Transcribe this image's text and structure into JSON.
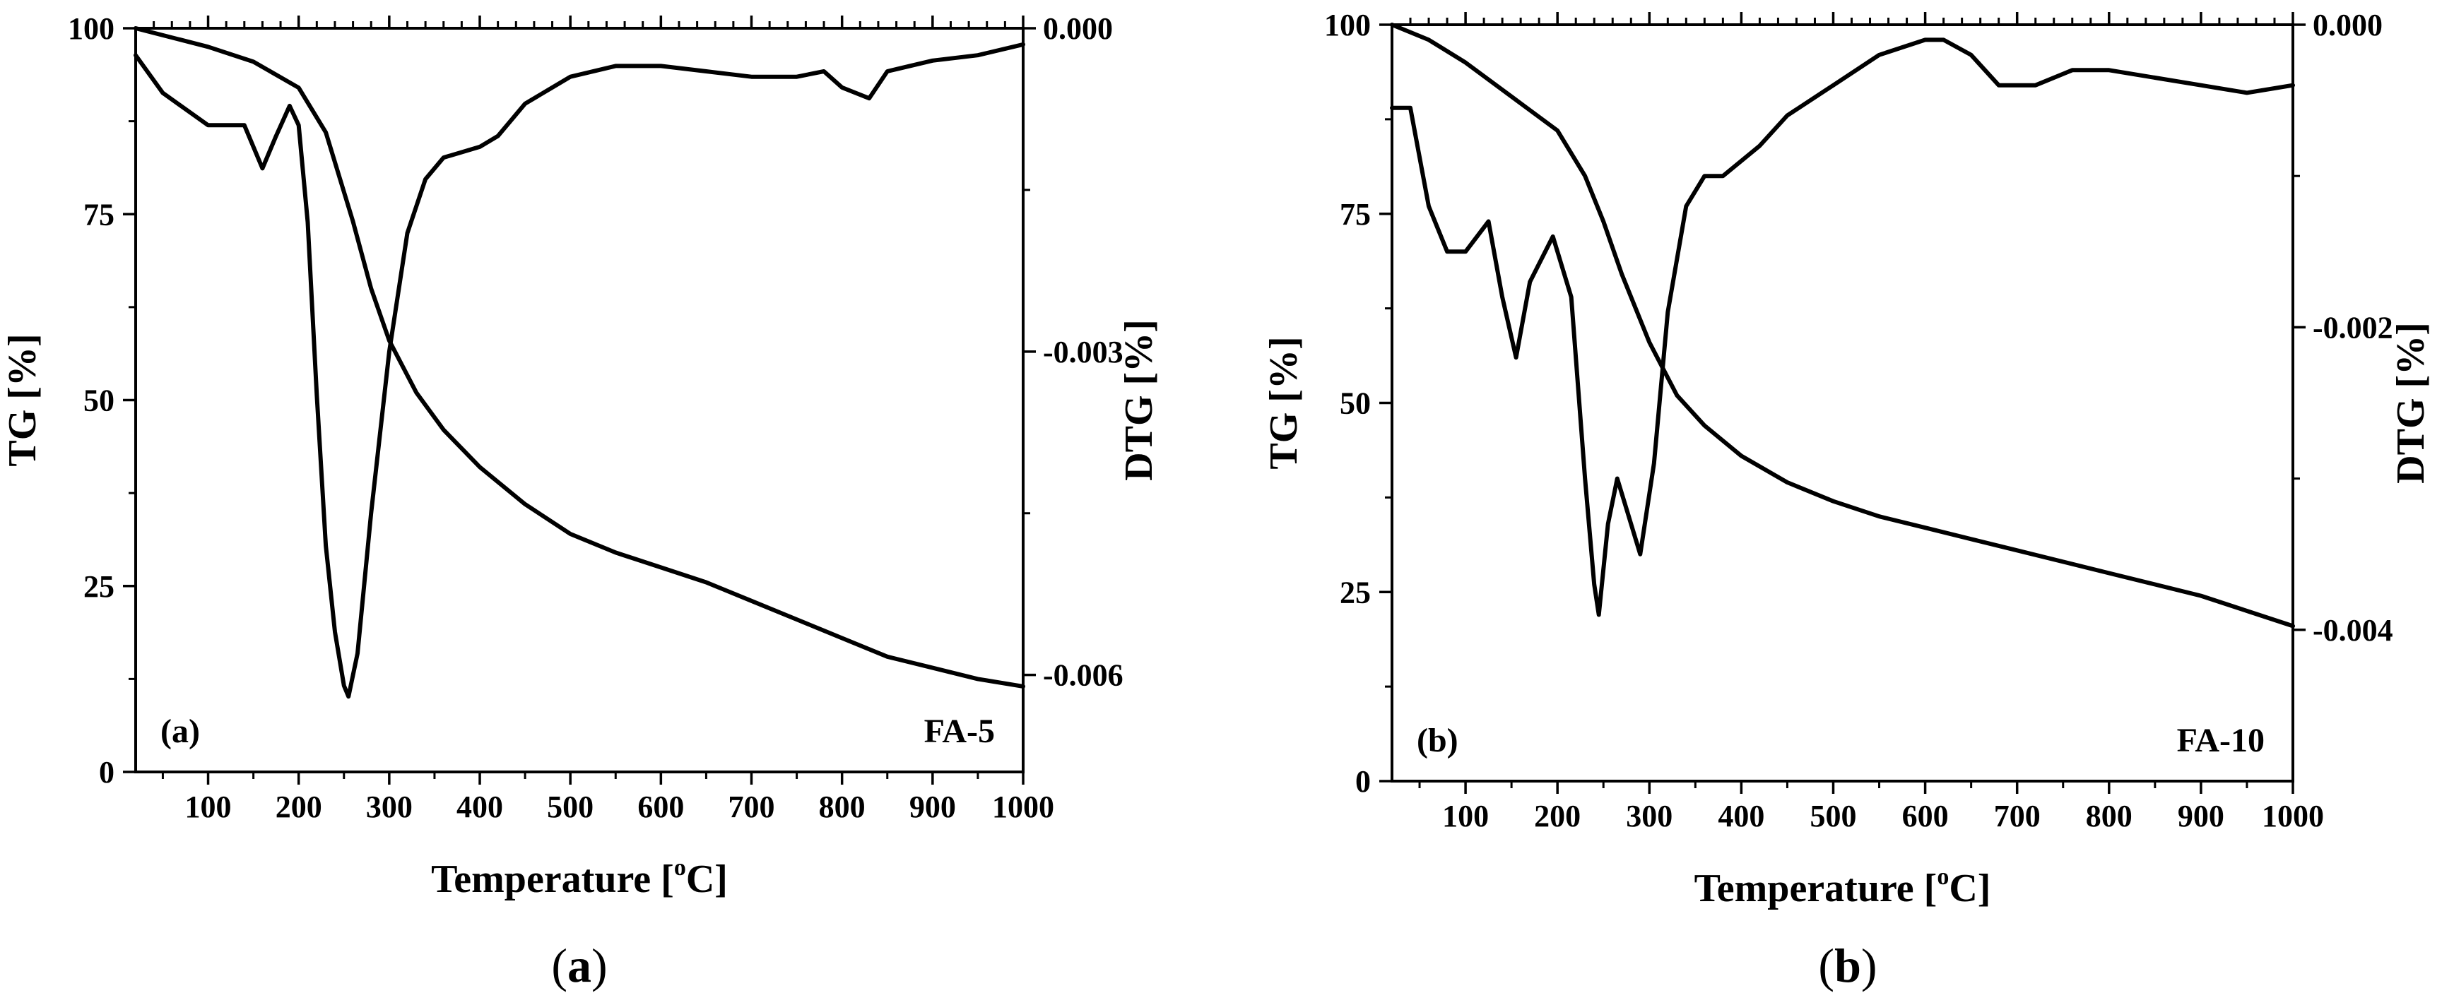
{
  "chart_data": [
    {
      "type": "line",
      "panel_tag": "(a)",
      "sample_label": "FA-5",
      "caption_letter": "a",
      "xlabel": "Temperature [",
      "xlabel_sup": "o",
      "xlabel_suffix": "C]",
      "ylabel_left": "TG [%]",
      "ylabel_right": "DTG [%]",
      "xlim": [
        20,
        1000
      ],
      "ylim_left": [
        0,
        100
      ],
      "ylim_right": [
        -0.0069,
        0.0
      ],
      "x_ticks": [
        100,
        200,
        300,
        400,
        500,
        600,
        700,
        800,
        900,
        1000
      ],
      "x_tick_labels": [
        "100",
        "200",
        "300",
        "400",
        "500",
        "600",
        "700",
        "800",
        "900",
        "1000"
      ],
      "left_ticks": [
        0,
        25,
        50,
        75,
        100
      ],
      "left_tick_labels": [
        "0",
        "25",
        "50",
        "75",
        "100"
      ],
      "right_ticks": [
        0.0,
        -0.003,
        -0.006
      ],
      "right_tick_labels": [
        "0.000",
        "-0.003",
        "-0.006"
      ],
      "series": [
        {
          "name": "TG",
          "axis": "left",
          "x": [
            20,
            100,
            150,
            200,
            230,
            260,
            280,
            300,
            330,
            360,
            400,
            450,
            500,
            550,
            600,
            650,
            700,
            750,
            800,
            850,
            900,
            950,
            1000
          ],
          "y": [
            100,
            97.5,
            95.5,
            92,
            86,
            74,
            65,
            58,
            51,
            46,
            41,
            36,
            32,
            29.5,
            27.5,
            25.5,
            23,
            20.5,
            18,
            15.5,
            14,
            12.5,
            11.5
          ]
        },
        {
          "name": "DTG",
          "axis": "right",
          "x": [
            20,
            50,
            100,
            140,
            160,
            175,
            190,
            200,
            210,
            220,
            230,
            240,
            250,
            255,
            265,
            280,
            300,
            320,
            340,
            360,
            400,
            420,
            450,
            500,
            550,
            600,
            650,
            700,
            750,
            780,
            800,
            830,
            850,
            900,
            950,
            1000
          ],
          "y": [
            -0.00025,
            -0.0006,
            -0.0009,
            -0.0009,
            -0.0013,
            -0.001,
            -0.00072,
            -0.0009,
            -0.0018,
            -0.0034,
            -0.0048,
            -0.0056,
            -0.0061,
            -0.0062,
            -0.0058,
            -0.0045,
            -0.003,
            -0.0019,
            -0.0014,
            -0.0012,
            -0.0011,
            -0.001,
            -0.0007,
            -0.00045,
            -0.00035,
            -0.00035,
            -0.0004,
            -0.00045,
            -0.00045,
            -0.0004,
            -0.00055,
            -0.00065,
            -0.0004,
            -0.0003,
            -0.00025,
            -0.00015
          ]
        }
      ]
    },
    {
      "type": "line",
      "panel_tag": "(b)",
      "sample_label": "FA-10",
      "caption_letter": "b",
      "xlabel": "Temperature [",
      "xlabel_sup": "o",
      "xlabel_suffix": "C]",
      "ylabel_left": "TG [%]",
      "ylabel_right": "DTG [%]",
      "xlim": [
        20,
        1000
      ],
      "ylim_left": [
        0,
        100
      ],
      "ylim_right": [
        -0.005,
        0.0
      ],
      "x_ticks": [
        100,
        200,
        300,
        400,
        500,
        600,
        700,
        800,
        900,
        1000
      ],
      "x_tick_labels": [
        "100",
        "200",
        "300",
        "400",
        "500",
        "600",
        "700",
        "800",
        "900",
        "1000"
      ],
      "left_ticks": [
        0,
        25,
        50,
        75,
        100
      ],
      "left_tick_labels": [
        "0",
        "25",
        "50",
        "75",
        "100"
      ],
      "right_ticks": [
        0.0,
        -0.002,
        -0.004
      ],
      "right_tick_labels": [
        "0.000",
        "-0.002",
        "-0.004"
      ],
      "series": [
        {
          "name": "TG",
          "axis": "left",
          "x": [
            20,
            60,
            100,
            150,
            200,
            230,
            250,
            270,
            300,
            330,
            360,
            400,
            450,
            500,
            550,
            600,
            650,
            700,
            750,
            800,
            850,
            900,
            950,
            1000
          ],
          "y": [
            100,
            98,
            95,
            90.5,
            86,
            80,
            74,
            67,
            58,
            51,
            47,
            43,
            39.5,
            37,
            35,
            33.5,
            32,
            30.5,
            29,
            27.5,
            26,
            24.5,
            22.5,
            20.5
          ]
        },
        {
          "name": "DTG",
          "axis": "right",
          "x": [
            20,
            40,
            60,
            80,
            100,
            125,
            140,
            155,
            170,
            195,
            215,
            230,
            240,
            245,
            255,
            265,
            275,
            290,
            305,
            320,
            340,
            360,
            380,
            420,
            450,
            500,
            550,
            600,
            620,
            650,
            680,
            720,
            760,
            800,
            850,
            900,
            950,
            1000
          ],
          "y": [
            -0.00055,
            -0.00055,
            -0.0012,
            -0.0015,
            -0.0015,
            -0.0013,
            -0.0018,
            -0.0022,
            -0.0017,
            -0.0014,
            -0.0018,
            -0.003,
            -0.0037,
            -0.0039,
            -0.0033,
            -0.003,
            -0.0032,
            -0.0035,
            -0.0029,
            -0.0019,
            -0.0012,
            -0.001,
            -0.001,
            -0.0008,
            -0.0006,
            -0.0004,
            -0.0002,
            -0.0001,
            -0.0001,
            -0.0002,
            -0.0004,
            -0.0004,
            -0.0003,
            -0.0003,
            -0.00035,
            -0.0004,
            -0.00045,
            -0.0004
          ]
        }
      ]
    }
  ]
}
